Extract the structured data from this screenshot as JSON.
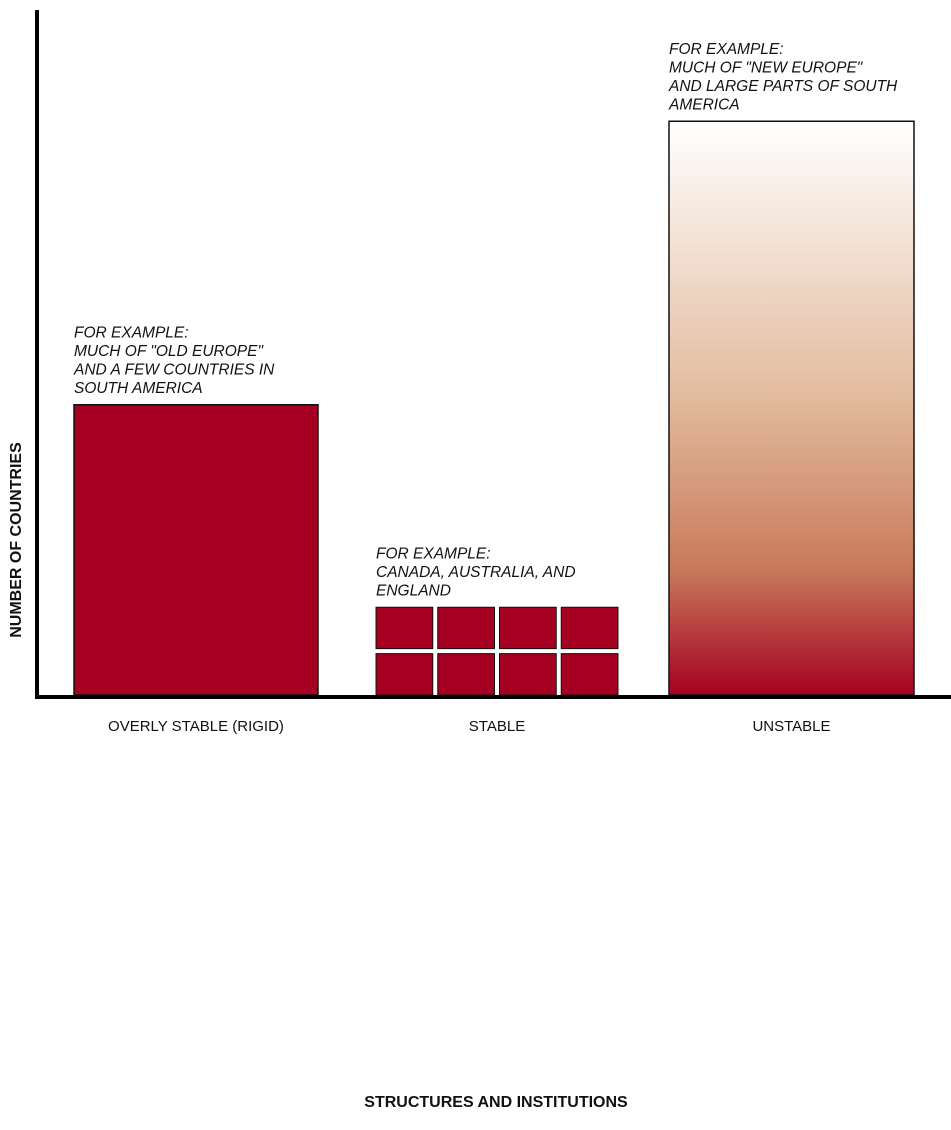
{
  "chart_data": {
    "type": "bar",
    "xlabel": "STRUCTURES AND INSTITUTIONS",
    "ylabel": "NUMBER OF COUNTRIES",
    "categories": [
      "OVERLY STABLE (RIGID)",
      "STABLE",
      "UNSTABLE"
    ],
    "values": [
      0.43,
      0.13,
      0.85
    ],
    "ylim": [
      0,
      1
    ],
    "grid": false,
    "legend": "none",
    "annotations": [
      [
        "FOR EXAMPLE:",
        "MUCH OF \"OLD EUROPE\"",
        "AND A FEW COUNTRIES IN",
        "SOUTH AMERICA"
      ],
      [
        "FOR EXAMPLE:",
        "CANADA, AUSTRALIA, AND",
        "ENGLAND"
      ],
      [
        "FOR EXAMPLE:",
        "MUCH OF \"NEW EUROPE\"",
        "AND LARGE PARTS OF SOUTH",
        "AMERICA"
      ]
    ],
    "bar_styles": [
      "solid",
      "grid",
      "gradient"
    ],
    "colors": {
      "bar": "#a50021",
      "gradient_top": "#ffffff",
      "gradient_mid": "#e3bb9e",
      "gradient_low": "#c87a5b",
      "gradient_bottom": "#a50021",
      "axis": "#000000",
      "outline": "#111111"
    }
  }
}
